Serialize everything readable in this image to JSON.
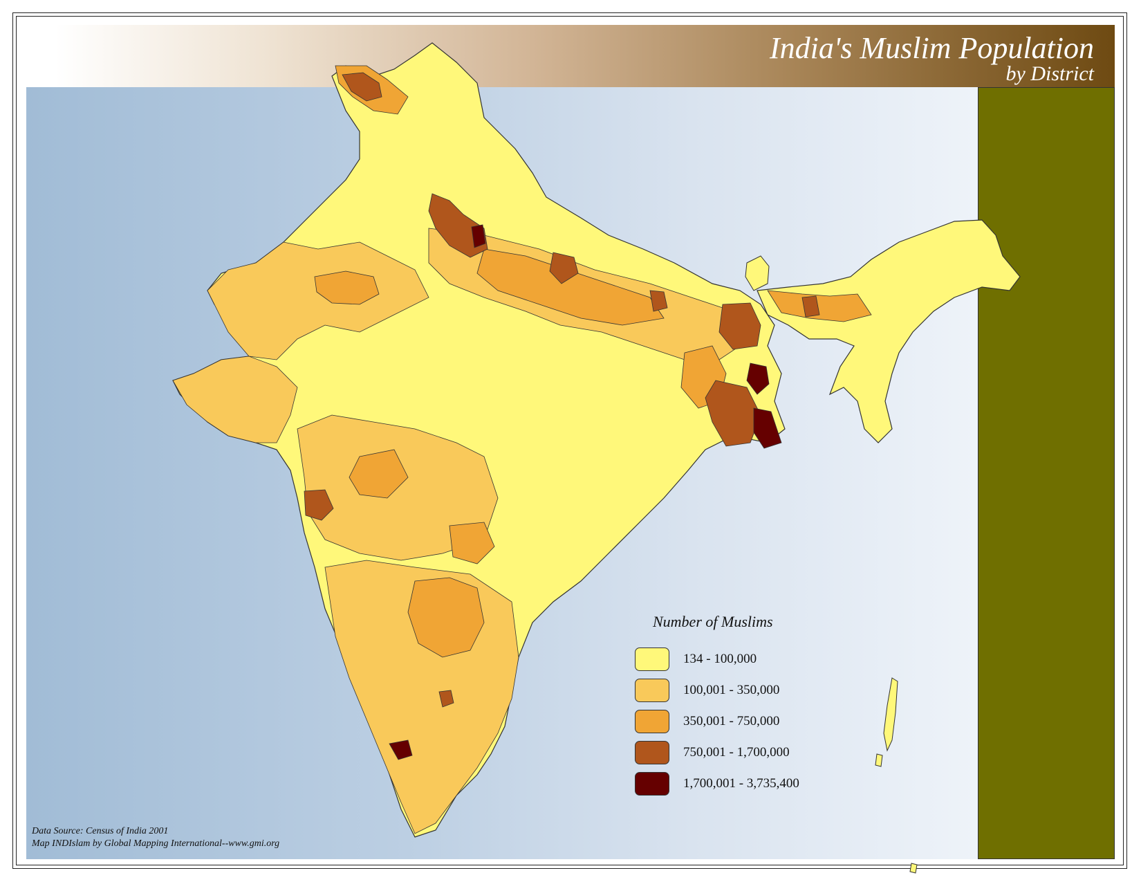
{
  "title": {
    "main": "India's Muslim Population",
    "sub": "by District"
  },
  "legend": {
    "title": "Number of Muslims",
    "classes": [
      {
        "label": "134 - 100,000",
        "color": "#fff87a"
      },
      {
        "label": "100,001 - 350,000",
        "color": "#f9c95a"
      },
      {
        "label": "350,001 - 750,000",
        "color": "#f0a535"
      },
      {
        "label": "750,001 - 1,700,000",
        "color": "#b0561c"
      },
      {
        "label": "1,700,001 - 3,735,400",
        "color": "#650000"
      }
    ]
  },
  "source": {
    "line1": "Data Source:  Census of India 2001",
    "line2": "Map INDIslam by Global Mapping International--www.gmi.org"
  },
  "colors": {
    "olive_panel": "#6f6f00",
    "district_border": "#333333"
  }
}
